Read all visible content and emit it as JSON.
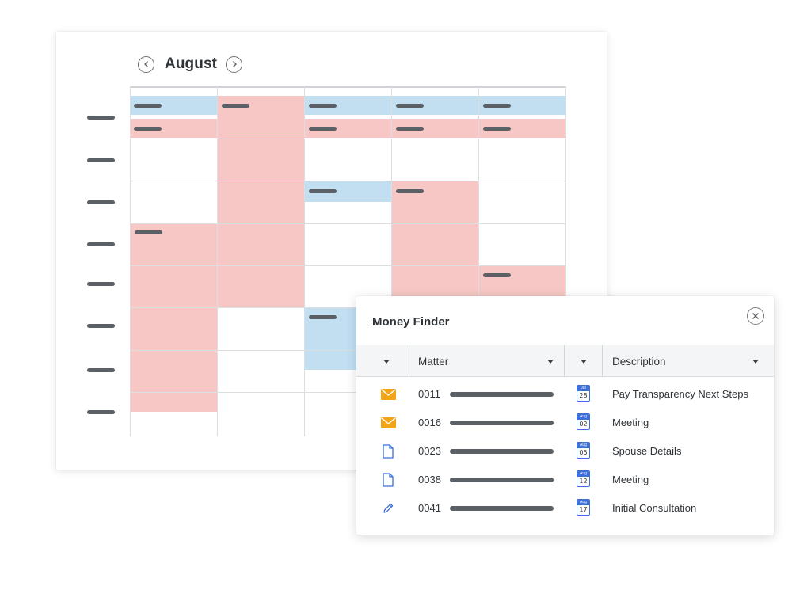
{
  "calendar": {
    "month": "August",
    "prev_icon": "chevron-left-icon",
    "next_icon": "chevron-right-icon"
  },
  "money_finder": {
    "title": "Money Finder",
    "close_icon": "close-icon",
    "columns": [
      {
        "label": "",
        "sortable": true
      },
      {
        "label": "Matter",
        "sortable": true
      },
      {
        "label": "",
        "sortable": true
      },
      {
        "label": "Description",
        "sortable": true
      }
    ],
    "rows": [
      {
        "type_icon": "envelope-icon",
        "matter": "0011",
        "date_month": "Jul",
        "date_day": "28",
        "description": "Pay Transparency Next Steps"
      },
      {
        "type_icon": "envelope-icon",
        "matter": "0016",
        "date_month": "Aug",
        "date_day": "02",
        "description": "Meeting"
      },
      {
        "type_icon": "document-icon",
        "matter": "0023",
        "date_month": "Aug",
        "date_day": "05",
        "description": "Spouse Details"
      },
      {
        "type_icon": "document-icon",
        "matter": "0038",
        "date_month": "Aug",
        "date_day": "12",
        "description": "Meeting"
      },
      {
        "type_icon": "pencil-icon",
        "matter": "0041",
        "date_month": "Aug",
        "date_day": "17",
        "description": "Initial Consultation"
      }
    ]
  },
  "colors": {
    "event_pink": "#f6c7c4",
    "event_blue": "#c2dff2",
    "placeholder_bar": "#5b6066",
    "envelope": "#f2a516",
    "icon_blue": "#3b6fd9"
  }
}
